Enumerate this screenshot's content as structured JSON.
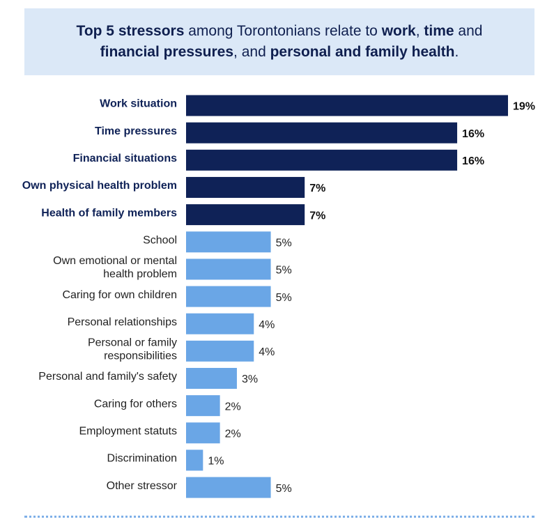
{
  "headline": {
    "p1": "Top 5 stressors",
    "p2": " among Torontonians relate to ",
    "p3": "work",
    "p4": ", ",
    "p5": "time",
    "p6": " and ",
    "p7": "financial pressures",
    "p8": ", and ",
    "p9": "personal and family health",
    "p10": "."
  },
  "colors": {
    "top5": "#0f2257",
    "other": "#6aa6e6",
    "title_bg": "#dbe8f7",
    "divider": "#7fb0e8"
  },
  "chart_data": {
    "type": "bar",
    "orientation": "horizontal",
    "unit": "%",
    "categories": [
      "Work situation",
      "Time pressures",
      "Financial situations",
      "Own physical health problem",
      "Health of family members",
      "School",
      "Own emotional or mental health problem",
      "Caring for own children",
      "Personal relationships",
      "Personal or family responsibilities",
      "Personal and family's safety",
      "Caring for others",
      "Employment statuts",
      "Discrimination",
      "Other stressor"
    ],
    "category_lines": [
      [
        "Work situation"
      ],
      [
        "Time pressures"
      ],
      [
        "Financial situations"
      ],
      [
        "Own physical health problem"
      ],
      [
        "Health of family members"
      ],
      [
        "School"
      ],
      [
        "Own emotional or mental",
        "health problem"
      ],
      [
        "Caring for own children"
      ],
      [
        "Personal relationships"
      ],
      [
        "Personal or family",
        "responsibilities"
      ],
      [
        "Personal and family's safety"
      ],
      [
        "Caring for others"
      ],
      [
        "Employment statuts"
      ],
      [
        "Discrimination"
      ],
      [
        "Other stressor"
      ]
    ],
    "values": [
      19,
      16,
      16,
      7,
      7,
      5,
      5,
      5,
      4,
      4,
      3,
      2,
      2,
      1,
      5
    ],
    "value_labels": [
      "19%",
      "16%",
      "16%",
      "7%",
      "7%",
      "5%",
      "5%",
      "5%",
      "4%",
      "4%",
      "3%",
      "2%",
      "2%",
      "1%",
      "5%"
    ],
    "highlighted": [
      true,
      true,
      true,
      true,
      true,
      false,
      false,
      false,
      false,
      false,
      false,
      false,
      false,
      false,
      false
    ],
    "xlim": [
      0,
      19
    ],
    "grid": false,
    "legend": "none"
  }
}
